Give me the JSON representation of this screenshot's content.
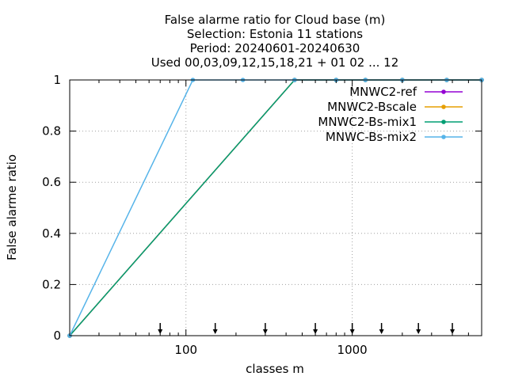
{
  "chart_data": {
    "type": "line",
    "title_lines": [
      "False alarme ratio  for Cloud base (m)",
      "Selection: Estonia     11 stations",
      "Period: 20240601-20240630",
      "Used 00,03,09,12,15,18,21 + 01 02 ... 12"
    ],
    "xlabel": "classes m",
    "ylabel": "False alarme ratio",
    "x_scale": "log",
    "xlim": [
      20,
      6000
    ],
    "ylim": [
      0,
      1
    ],
    "x_ticks": [
      100,
      1000
    ],
    "x_tick_labels": [
      "100",
      "1000"
    ],
    "y_ticks": [
      0,
      0.2,
      0.4,
      0.6,
      0.8,
      1
    ],
    "y_tick_labels": [
      "0",
      "0.2",
      "0.4",
      "0.6",
      "0.8",
      "1"
    ],
    "grid": true,
    "legend_position": "top-right",
    "class_markers_x": [
      70,
      150,
      300,
      600,
      1000,
      1500,
      2500,
      4000
    ],
    "series": [
      {
        "name": "MNWC2-ref",
        "color": "#9400d3",
        "x": [
          20,
          450,
          800,
          1200,
          2000,
          3700,
          6000
        ],
        "y": [
          0,
          1,
          1,
          1,
          1,
          1,
          1
        ]
      },
      {
        "name": "MNWC2-Bscale",
        "color": "#e69f00",
        "x": [
          20,
          450,
          800,
          1200,
          2000,
          3700,
          6000
        ],
        "y": [
          0,
          1,
          1,
          1,
          1,
          1,
          1
        ]
      },
      {
        "name": "MNWC2-Bs-mix1",
        "color": "#009e73",
        "x": [
          20,
          450,
          800,
          1200,
          2000,
          3700,
          6000
        ],
        "y": [
          0,
          1,
          1,
          1,
          1,
          1,
          1
        ]
      },
      {
        "name": "MNWC-Bs-mix2",
        "color": "#56b4e9",
        "x": [
          20,
          110,
          220,
          450,
          800,
          1200,
          2000,
          3700,
          6000
        ],
        "y": [
          0,
          1,
          1,
          1,
          1,
          1,
          1,
          1,
          1
        ]
      }
    ]
  }
}
